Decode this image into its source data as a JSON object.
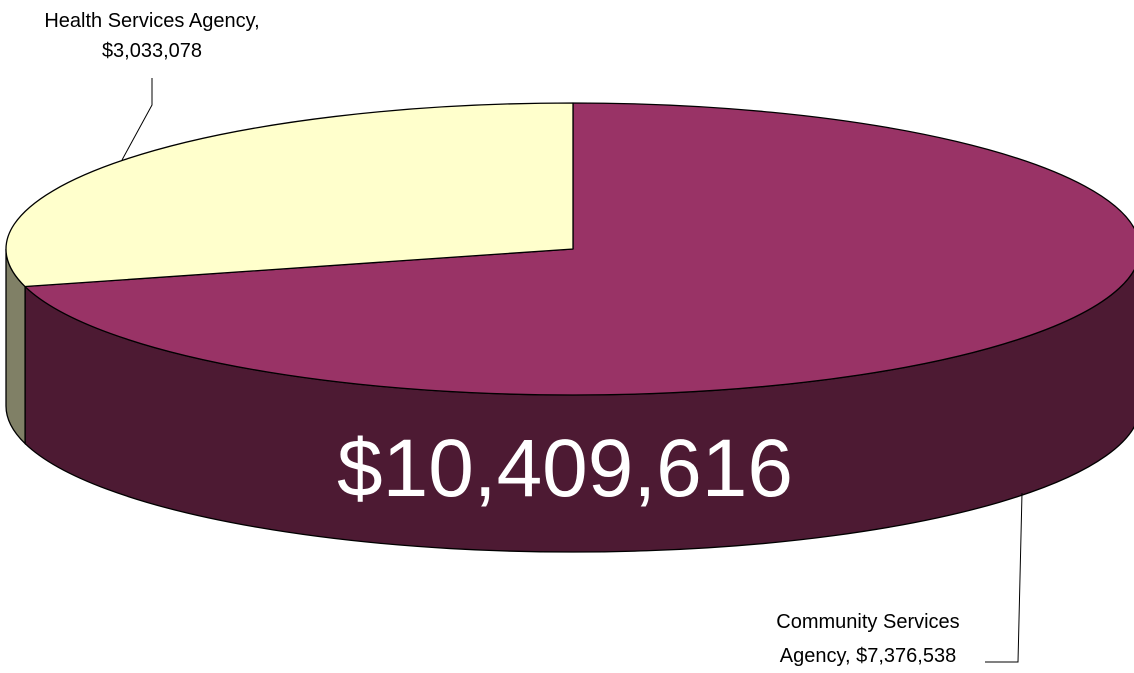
{
  "chart_data": {
    "type": "pie",
    "style": "3d",
    "slices": [
      {
        "label": "Community Services Agency",
        "value": 7376538,
        "label_lines": [
          "Community Services",
          "Agency, $7,376,538"
        ],
        "top_color": "#993366",
        "side_color": "#4d1a33"
      },
      {
        "label": "Health Services Agency",
        "value": 3033078,
        "label_lines": [
          "Health Services Agency,",
          "$3,033,078"
        ],
        "top_color": "#ffffcc",
        "side_color": "#808066"
      }
    ],
    "total_label": "$10,409,616",
    "legend": "none",
    "grid": false
  }
}
